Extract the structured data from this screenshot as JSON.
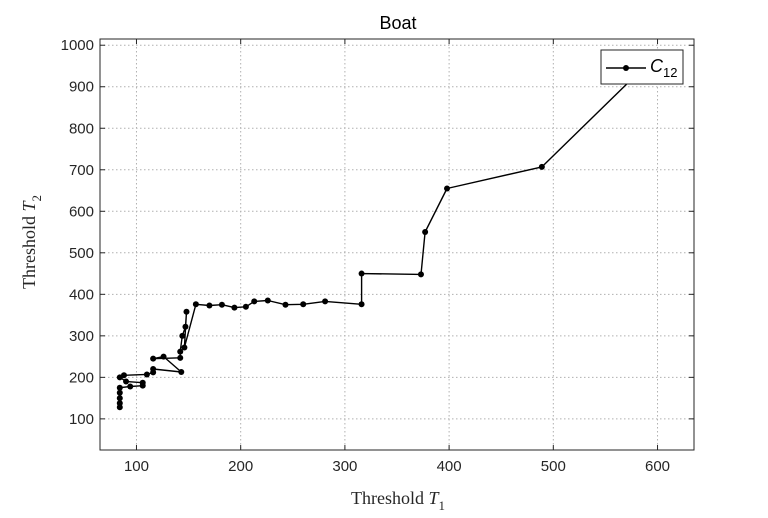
{
  "chart_data": {
    "type": "line",
    "title": "Boat",
    "xlabel": {
      "text": "Threshold ",
      "var": "T",
      "sub": "1"
    },
    "ylabel": {
      "text": "Threshold ",
      "var": "T",
      "sub": "2"
    },
    "xlim": [
      65,
      635
    ],
    "ylim": [
      25,
      1015
    ],
    "xticks": [
      100,
      200,
      300,
      400,
      500,
      600
    ],
    "yticks": [
      100,
      200,
      300,
      400,
      500,
      600,
      700,
      800,
      900,
      1000
    ],
    "grid": true,
    "legend_position": "top-right",
    "colors": {
      "line": "#000000",
      "grid": "#b0b0b0",
      "axis": "#262626"
    },
    "series": [
      {
        "name": {
          "base": "C",
          "sub": "12"
        },
        "points": [
          [
            84,
            128
          ],
          [
            84,
            138
          ],
          [
            84,
            150
          ],
          [
            84,
            163
          ],
          [
            84,
            175
          ],
          [
            94,
            178
          ],
          [
            106,
            180
          ],
          [
            106,
            187
          ],
          [
            90,
            190
          ],
          [
            84,
            200
          ],
          [
            88,
            205
          ],
          [
            110,
            207
          ],
          [
            116,
            212
          ],
          [
            116,
            220
          ],
          [
            143,
            213
          ],
          [
            126,
            250
          ],
          [
            116,
            245
          ],
          [
            142,
            247
          ],
          [
            142,
            262
          ],
          [
            144,
            300
          ],
          [
            147,
            322
          ],
          [
            148,
            358
          ],
          [
            146,
            272
          ],
          [
            157,
            376
          ],
          [
            170,
            373
          ],
          [
            182,
            375
          ],
          [
            194,
            368
          ],
          [
            205,
            370
          ],
          [
            213,
            383
          ],
          [
            226,
            385
          ],
          [
            243,
            375
          ],
          [
            260,
            376
          ],
          [
            281,
            383
          ],
          [
            316,
            376
          ],
          [
            316,
            450
          ],
          [
            373,
            448
          ],
          [
            377,
            550
          ],
          [
            398,
            655
          ],
          [
            489,
            707
          ],
          [
            580,
            930
          ]
        ]
      }
    ]
  }
}
